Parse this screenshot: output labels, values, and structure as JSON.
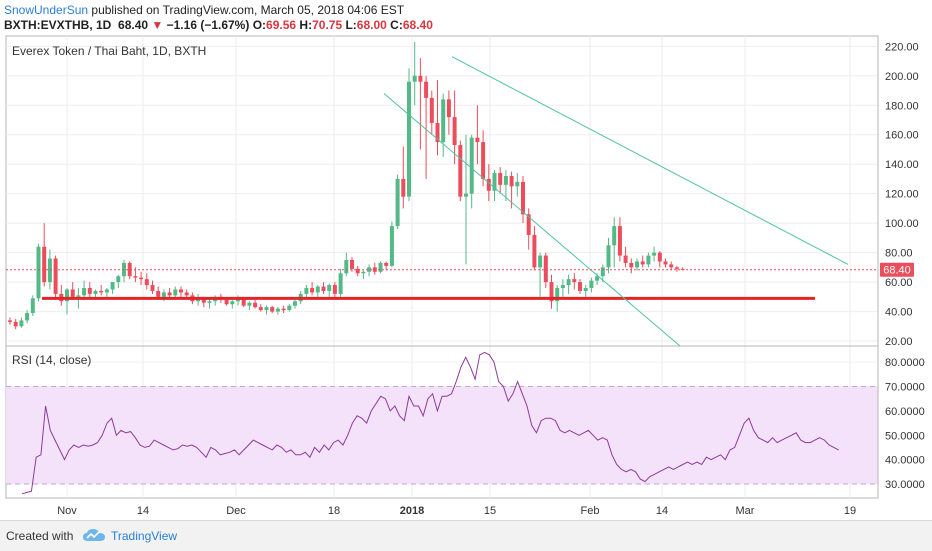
{
  "header": {
    "author": "SnowUnderSun",
    "published": "published on TradingView.com, March 05, 2018 04:06 EST",
    "symbol": "BXTH:EVXTHB, 1D",
    "last": "68.40",
    "change_arrow": "▼",
    "change": "−1.16 (−1.67%)",
    "o_label": "O:",
    "o_value": "69.56",
    "h_label": "H:",
    "h_value": "70.75",
    "l_label": "L:",
    "l_value": "68.00",
    "c_label": "C:",
    "c_value": "68.40"
  },
  "colors": {
    "up": "#53b987",
    "down": "#eb4d5c",
    "support": "#e3242b",
    "channel": "#4fc3a1",
    "rsi_line": "#8e3a9a",
    "rsi_band": "#f3e2fa",
    "last_price_box": "#eb4d5c",
    "brand": "#2a7fd4"
  },
  "chart_data": [
    {
      "type": "candlestick",
      "title": "Everex Token / Thai Baht, 1D, BXTH",
      "y_ticks": [
        "220.00",
        "200.00",
        "180.00",
        "160.00",
        "140.00",
        "120.00",
        "100.00",
        "80.00",
        "60.00",
        "40.00",
        "20.00"
      ],
      "ylim": [
        18,
        227
      ],
      "x_ticks": [
        "Nov",
        "14",
        "Dec",
        "18",
        "2018",
        "15",
        "Feb",
        "14",
        "Mar",
        "19"
      ],
      "last_price_label": "68.40",
      "support_level": 49,
      "channel_upper": [
        [
          58,
          213
        ],
        [
          110,
          72
        ]
      ],
      "channel_lower": [
        [
          48,
          188
        ],
        [
          104,
          20
        ]
      ],
      "ohlc": [
        [
          34,
          36,
          31,
          33
        ],
        [
          33,
          35,
          28,
          30
        ],
        [
          30,
          36,
          29,
          34
        ],
        [
          34,
          41,
          32,
          39
        ],
        [
          39,
          51,
          37,
          49
        ],
        [
          49,
          86,
          47,
          84
        ],
        [
          84,
          100,
          57,
          60
        ],
        [
          60,
          82,
          55,
          76
        ],
        [
          76,
          78,
          48,
          52
        ],
        [
          52,
          58,
          44,
          47
        ],
        [
          47,
          56,
          38,
          55
        ],
        [
          55,
          60,
          48,
          50
        ],
        [
          50,
          56,
          42,
          51
        ],
        [
          51,
          61,
          48,
          56
        ],
        [
          56,
          60,
          50,
          52
        ],
        [
          52,
          55,
          48,
          54
        ],
        [
          54,
          58,
          51,
          53
        ],
        [
          53,
          56,
          50,
          55
        ],
        [
          55,
          60,
          52,
          60
        ],
        [
          60,
          65,
          56,
          64
        ],
        [
          64,
          75,
          60,
          73
        ],
        [
          73,
          74,
          62,
          64
        ],
        [
          64,
          70,
          60,
          63
        ],
        [
          63,
          67,
          58,
          62
        ],
        [
          62,
          66,
          55,
          58
        ],
        [
          58,
          61,
          52,
          54
        ],
        [
          54,
          57,
          48,
          50
        ],
        [
          50,
          55,
          47,
          53
        ],
        [
          53,
          56,
          49,
          51
        ],
        [
          51,
          57,
          48,
          55
        ],
        [
          55,
          57,
          50,
          53
        ],
        [
          53,
          55,
          49,
          51
        ],
        [
          51,
          53,
          45,
          47
        ],
        [
          47,
          52,
          44,
          49
        ],
        [
          49,
          50,
          43,
          46
        ],
        [
          46,
          49,
          42,
          47
        ],
        [
          47,
          51,
          44,
          50
        ],
        [
          50,
          52,
          46,
          48
        ],
        [
          48,
          50,
          44,
          45
        ],
        [
          45,
          48,
          42,
          47
        ],
        [
          47,
          51,
          44,
          49
        ],
        [
          49,
          50,
          43,
          44
        ],
        [
          44,
          47,
          41,
          46
        ],
        [
          46,
          48,
          42,
          43
        ],
        [
          43,
          45,
          40,
          41
        ],
        [
          41,
          44,
          38,
          43
        ],
        [
          43,
          44,
          39,
          40
        ],
        [
          40,
          43,
          38,
          42
        ],
        [
          42,
          44,
          39,
          41
        ],
        [
          41,
          45,
          40,
          44
        ],
        [
          44,
          49,
          42,
          47
        ],
        [
          47,
          54,
          45,
          52
        ],
        [
          52,
          58,
          49,
          56
        ],
        [
          56,
          60,
          51,
          53
        ],
        [
          53,
          58,
          50,
          57
        ],
        [
          57,
          60,
          52,
          54
        ],
        [
          54,
          59,
          50,
          58
        ],
        [
          58,
          60,
          50,
          52
        ],
        [
          52,
          69,
          50,
          66
        ],
        [
          66,
          80,
          64,
          75
        ],
        [
          75,
          77,
          67,
          69
        ],
        [
          69,
          71,
          64,
          66
        ],
        [
          66,
          68,
          62,
          67
        ],
        [
          67,
          72,
          64,
          70
        ],
        [
          70,
          73,
          65,
          67
        ],
        [
          67,
          74,
          66,
          73
        ],
        [
          73,
          74,
          68,
          71
        ],
        [
          71,
          101,
          70,
          98
        ],
        [
          98,
          133,
          96,
          130
        ],
        [
          130,
          152,
          110,
          118
        ],
        [
          118,
          205,
          115,
          196
        ],
        [
          196,
          223,
          180,
          200
        ],
        [
          200,
          212,
          150,
          196
        ],
        [
          196,
          200,
          130,
          185
        ],
        [
          185,
          190,
          160,
          168
        ],
        [
          168,
          197,
          146,
          155
        ],
        [
          155,
          188,
          145,
          184
        ],
        [
          184,
          190,
          160,
          172
        ],
        [
          172,
          190,
          140,
          153
        ],
        [
          153,
          156,
          115,
          118
        ],
        [
          118,
          160,
          72,
          120
        ],
        [
          120,
          160,
          110,
          158
        ],
        [
          158,
          180,
          140,
          155
        ],
        [
          155,
          163,
          125,
          130
        ],
        [
          130,
          140,
          115,
          122
        ],
        [
          122,
          136,
          115,
          134
        ],
        [
          134,
          138,
          120,
          126
        ],
        [
          126,
          136,
          115,
          132
        ],
        [
          132,
          135,
          110,
          125
        ],
        [
          125,
          134,
          118,
          128
        ],
        [
          128,
          132,
          100,
          106
        ],
        [
          106,
          110,
          82,
          92
        ],
        [
          92,
          98,
          68,
          70
        ],
        [
          70,
          80,
          50,
          78
        ],
        [
          78,
          80,
          56,
          60
        ],
        [
          60,
          65,
          42,
          47
        ],
        [
          47,
          58,
          40,
          56
        ],
        [
          56,
          62,
          50,
          58
        ],
        [
          58,
          65,
          52,
          62
        ],
        [
          62,
          66,
          55,
          60
        ],
        [
          60,
          62,
          52,
          54
        ],
        [
          54,
          58,
          50,
          56
        ],
        [
          56,
          63,
          53,
          61
        ],
        [
          61,
          66,
          58,
          64
        ],
        [
          64,
          72,
          60,
          70
        ],
        [
          70,
          90,
          66,
          85
        ],
        [
          85,
          104,
          70,
          98
        ],
        [
          98,
          104,
          74,
          78
        ],
        [
          78,
          84,
          70,
          73
        ],
        [
          73,
          76,
          66,
          70
        ],
        [
          70,
          76,
          68,
          74
        ],
        [
          74,
          78,
          70,
          72
        ],
        [
          72,
          80,
          70,
          78
        ],
        [
          78,
          84,
          74,
          80
        ],
        [
          80,
          81,
          70,
          74
        ],
        [
          74,
          76,
          70,
          72
        ],
        [
          72,
          74,
          68,
          70
        ],
        [
          70,
          71,
          67,
          69
        ],
        [
          69,
          70,
          68,
          68.4
        ]
      ]
    },
    {
      "type": "line",
      "title": "RSI (14, close)",
      "y_ticks": [
        "80.0000",
        "70.0000",
        "60.0000",
        "50.0000",
        "40.0000",
        "30.0000"
      ],
      "ylim": [
        23,
        87
      ],
      "band": [
        30,
        70
      ],
      "values": [
        26,
        26.5,
        27,
        41,
        42,
        62,
        52,
        48,
        44,
        40,
        44,
        46,
        45,
        46,
        45.5,
        46,
        47,
        50,
        55,
        57,
        50,
        52,
        51,
        51.5,
        49,
        46,
        45,
        45.5,
        48,
        47,
        46,
        45,
        44,
        44.5,
        46,
        45.5,
        46,
        45,
        43,
        41,
        45,
        44,
        42,
        42.5,
        43,
        44,
        42,
        44,
        46,
        48,
        47,
        46,
        45,
        44,
        46,
        45,
        43,
        44,
        42,
        42,
        43,
        41,
        45,
        43,
        46,
        44,
        47,
        48,
        46,
        50,
        55,
        58,
        57,
        55,
        60,
        63,
        66,
        65,
        60,
        62,
        58,
        56,
        66,
        62,
        62,
        58,
        65,
        67,
        60,
        66,
        66,
        67,
        72,
        78,
        82,
        78,
        73,
        83,
        84,
        83,
        80,
        72,
        70,
        64,
        67,
        72,
        67,
        62,
        54,
        51,
        56,
        57,
        57,
        56,
        52,
        51,
        52,
        51,
        50,
        51,
        52,
        50,
        48,
        49,
        48,
        42,
        38,
        36,
        35,
        36,
        35,
        32,
        31,
        33,
        34,
        35,
        36,
        37,
        36,
        37,
        38,
        39,
        38,
        39,
        38,
        41,
        40,
        41,
        42,
        40,
        44,
        45,
        50,
        55,
        57,
        52,
        49,
        48,
        47,
        49,
        47,
        48,
        49,
        50,
        51,
        48,
        47,
        47,
        48,
        49,
        48,
        46,
        45,
        44
      ]
    }
  ],
  "footer": {
    "created_with": "Created with",
    "brand": "TradingView"
  }
}
